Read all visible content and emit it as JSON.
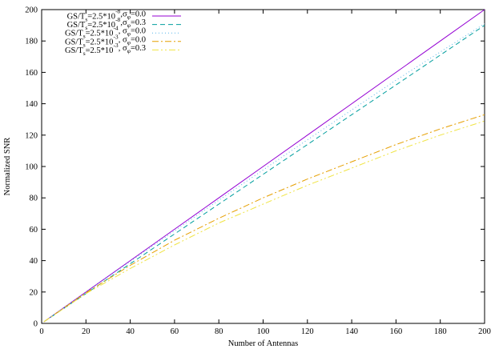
{
  "chart_data": {
    "type": "line",
    "title": "",
    "xlabel": "Number of Antennas",
    "ylabel": "Normalized SNR",
    "xlim": [
      0,
      200
    ],
    "ylim": [
      0,
      200
    ],
    "xticks": [
      0,
      20,
      40,
      60,
      80,
      100,
      120,
      140,
      160,
      180,
      200
    ],
    "yticks": [
      0,
      20,
      40,
      60,
      80,
      100,
      120,
      140,
      160,
      180,
      200
    ],
    "grid": false,
    "legend_position": "top-left",
    "series": [
      {
        "name_parts": [
          [
            "GS/T",
            ""
          ],
          [
            "s",
            "sub"
          ],
          [
            "=2.5*10",
            ""
          ],
          [
            "-8",
            "sup"
          ],
          [
            ",σ",
            ""
          ],
          [
            "φ",
            "sub"
          ],
          [
            "=0.0",
            ""
          ]
        ],
        "color": "#9400d3",
        "dash": "",
        "x": [
          1,
          20,
          40,
          60,
          80,
          100,
          120,
          140,
          160,
          180,
          200
        ],
        "y": [
          1,
          20,
          40,
          60,
          80,
          100,
          120,
          140,
          160,
          180,
          200
        ]
      },
      {
        "name_parts": [
          [
            "GS/T",
            ""
          ],
          [
            "s",
            "sub"
          ],
          [
            "=2.5*10",
            ""
          ],
          [
            "-8",
            "sup"
          ],
          [
            ",σ",
            ""
          ],
          [
            "φ",
            "sub"
          ],
          [
            "=0.3",
            ""
          ]
        ],
        "color": "#009e9e",
        "dash": "6,4",
        "x": [
          1,
          20,
          40,
          60,
          80,
          100,
          120,
          140,
          160,
          180,
          200
        ],
        "y": [
          1,
          19,
          38,
          57,
          76,
          95,
          114,
          133,
          152,
          171,
          190
        ]
      },
      {
        "name_parts": [
          [
            "GS/T",
            ""
          ],
          [
            "s",
            "sub"
          ],
          [
            "=2.5*10",
            ""
          ],
          [
            "-4",
            "sup"
          ],
          [
            ", σ",
            ""
          ],
          [
            "φ",
            "sub"
          ],
          [
            "=0.0",
            ""
          ]
        ],
        "color": "#56b4e9",
        "dash": "1,3",
        "x": [
          1,
          20,
          40,
          60,
          80,
          100,
          120,
          140,
          160,
          180,
          200
        ],
        "y": [
          1,
          19.9,
          39.5,
          59,
          78.5,
          97.8,
          117,
          136,
          155,
          173,
          191
        ]
      },
      {
        "name_parts": [
          [
            "GS/T",
            ""
          ],
          [
            "s",
            "sub"
          ],
          [
            "=2.5*10",
            ""
          ],
          [
            "-3",
            "sup"
          ],
          [
            ", σ",
            ""
          ],
          [
            "φ",
            "sub"
          ],
          [
            "=0.0",
            ""
          ]
        ],
        "color": "#e69f00",
        "dash": "8,3,2,3",
        "x": [
          1,
          20,
          40,
          60,
          80,
          100,
          120,
          140,
          160,
          180,
          200
        ],
        "y": [
          1,
          19.5,
          37,
          53,
          67,
          80,
          92,
          103,
          114,
          124,
          133
        ]
      },
      {
        "name_parts": [
          [
            "GS/T",
            ""
          ],
          [
            "s",
            "sub"
          ],
          [
            "=2.5*10",
            ""
          ],
          [
            "-3",
            "sup"
          ],
          [
            ", σ",
            ""
          ],
          [
            "φ",
            "sub"
          ],
          [
            "=0.3",
            ""
          ]
        ],
        "color": "#f0e442",
        "dash": "8,3,2,3,2,3",
        "x": [
          1,
          20,
          40,
          60,
          80,
          100,
          120,
          140,
          160,
          180,
          200
        ],
        "y": [
          1,
          19,
          35,
          50,
          64,
          76,
          88,
          99,
          110,
          120,
          129
        ]
      }
    ]
  }
}
